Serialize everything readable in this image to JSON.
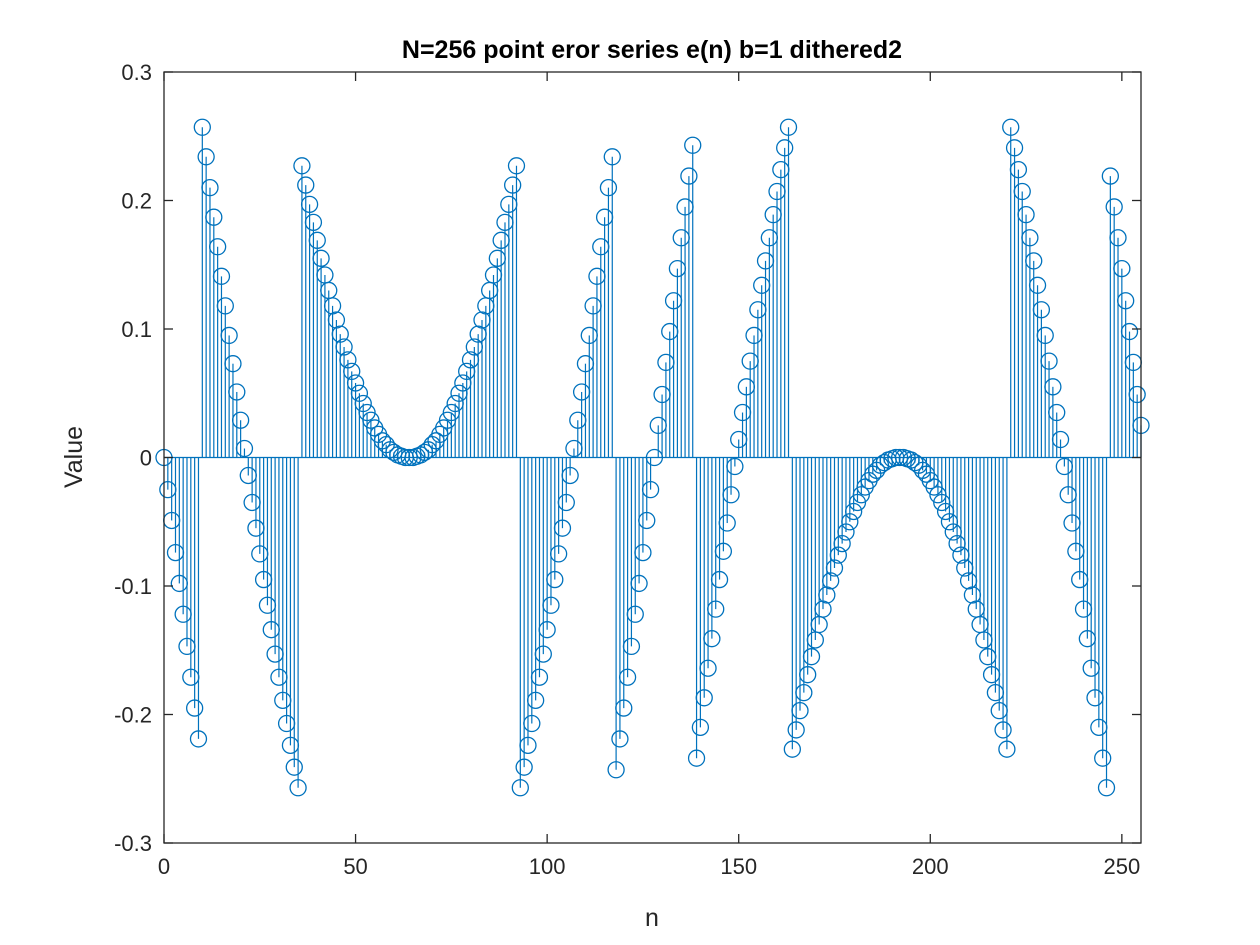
{
  "chart_data": {
    "type": "stem",
    "title": "N=256 point eror series e(n) b=1 dithered2",
    "xlabel": "n",
    "ylabel": "Value",
    "xlim": [
      0,
      255
    ],
    "ylim": [
      -0.3,
      0.3
    ],
    "x_ticks": [
      0,
      50,
      100,
      150,
      200,
      250
    ],
    "x_tick_labels": [
      "0",
      "50",
      "100",
      "150",
      "200",
      "250"
    ],
    "y_ticks": [
      -0.3,
      -0.2,
      -0.1,
      0,
      0.1,
      0.2,
      0.3
    ],
    "y_tick_labels": [
      "-0.3",
      "-0.2",
      "-0.1",
      "0",
      "0.1",
      "0.2",
      "0.3"
    ],
    "grid": false,
    "box": true,
    "marker": "circle",
    "series_color": "#0072BD",
    "x": [
      0,
      1,
      2,
      3,
      4,
      5,
      6,
      7,
      8,
      9,
      10,
      11,
      12,
      13,
      14,
      15,
      16,
      17,
      18,
      19,
      20,
      21,
      22,
      23,
      24,
      25,
      26,
      27,
      28,
      29,
      30,
      31,
      32,
      33,
      34,
      35,
      36,
      37,
      38,
      39,
      40,
      41,
      42,
      43,
      44,
      45,
      46,
      47,
      48,
      49,
      50,
      51,
      52,
      53,
      54,
      55,
      56,
      57,
      58,
      59,
      60,
      61,
      62,
      63,
      64,
      65,
      66,
      67,
      68,
      69,
      70,
      71,
      72,
      73,
      74,
      75,
      76,
      77,
      78,
      79,
      80,
      81,
      82,
      83,
      84,
      85,
      86,
      87,
      88,
      89,
      90,
      91,
      92,
      93,
      94,
      95,
      96,
      97,
      98,
      99,
      100,
      101,
      102,
      103,
      104,
      105,
      106,
      107,
      108,
      109,
      110,
      111,
      112,
      113,
      114,
      115,
      116,
      117,
      118,
      119,
      120,
      121,
      122,
      123,
      124,
      125,
      126,
      127,
      128,
      129,
      130,
      131,
      132,
      133,
      134,
      135,
      136,
      137,
      138,
      139,
      140,
      141,
      142,
      143,
      144,
      145,
      146,
      147,
      148,
      149,
      150,
      151,
      152,
      153,
      154,
      155,
      156,
      157,
      158,
      159,
      160,
      161,
      162,
      163,
      164,
      165,
      166,
      167,
      168,
      169,
      170,
      171,
      172,
      173,
      174,
      175,
      176,
      177,
      178,
      179,
      180,
      181,
      182,
      183,
      184,
      185,
      186,
      187,
      188,
      189,
      190,
      191,
      192,
      193,
      194,
      195,
      196,
      197,
      198,
      199,
      200,
      201,
      202,
      203,
      204,
      205,
      206,
      207,
      208,
      209,
      210,
      211,
      212,
      213,
      214,
      215,
      216,
      217,
      218,
      219,
      220,
      221,
      222,
      223,
      224,
      225,
      226,
      227,
      228,
      229,
      230,
      231,
      232,
      233,
      234,
      235,
      236,
      237,
      238,
      239,
      240,
      241,
      242,
      243,
      244,
      245,
      246,
      247,
      248,
      249,
      250,
      251,
      252,
      253,
      254,
      255
    ],
    "y": [
      0,
      -0.025,
      -0.049,
      -0.074,
      -0.098,
      -0.122,
      -0.147,
      -0.171,
      -0.195,
      -0.219,
      0.257,
      0.234,
      0.21,
      0.187,
      0.164,
      0.141,
      0.118,
      0.095,
      0.073,
      0.051,
      0.029,
      0.007,
      -0.014,
      -0.035,
      -0.055,
      -0.075,
      -0.095,
      -0.115,
      -0.134,
      -0.153,
      -0.171,
      -0.189,
      -0.207,
      -0.224,
      -0.241,
      -0.257,
      0.227,
      0.212,
      0.197,
      0.183,
      0.169,
      0.155,
      0.142,
      0.13,
      0.118,
      0.107,
      0.096,
      0.086,
      0.076,
      0.067,
      0.058,
      0.05,
      0.042,
      0.035,
      0.029,
      0.023,
      0.018,
      0.013,
      0.01,
      0.006,
      0.004,
      0.002,
      0.001,
      0,
      0,
      0,
      0.001,
      0.002,
      0.004,
      0.006,
      0.01,
      0.013,
      0.018,
      0.023,
      0.029,
      0.035,
      0.042,
      0.05,
      0.058,
      0.067,
      0.076,
      0.086,
      0.096,
      0.107,
      0.118,
      0.13,
      0.142,
      0.155,
      0.169,
      0.183,
      0.197,
      0.212,
      0.227,
      -0.257,
      -0.241,
      -0.224,
      -0.207,
      -0.189,
      -0.171,
      -0.153,
      -0.134,
      -0.115,
      -0.095,
      -0.075,
      -0.055,
      -0.035,
      -0.014,
      0.007,
      0.029,
      0.051,
      0.073,
      0.095,
      0.118,
      0.141,
      0.164,
      0.187,
      0.21,
      0.234,
      -0.243,
      -0.219,
      -0.195,
      -0.171,
      -0.147,
      -0.122,
      -0.098,
      -0.074,
      -0.049,
      -0.025,
      0,
      0.025,
      0.049,
      0.074,
      0.098,
      0.122,
      0.147,
      0.171,
      0.195,
      0.219,
      0.243,
      -0.234,
      -0.21,
      -0.187,
      -0.164,
      -0.141,
      -0.118,
      -0.095,
      -0.073,
      -0.051,
      -0.029,
      -0.007,
      0.014,
      0.035,
      0.055,
      0.075,
      0.095,
      0.115,
      0.134,
      0.153,
      0.171,
      0.189,
      0.207,
      0.224,
      0.241,
      0.257,
      -0.227,
      -0.212,
      -0.197,
      -0.183,
      -0.169,
      -0.155,
      -0.142,
      -0.13,
      -0.118,
      -0.107,
      -0.096,
      -0.086,
      -0.076,
      -0.067,
      -0.058,
      -0.05,
      -0.042,
      -0.035,
      -0.029,
      -0.023,
      -0.018,
      -0.013,
      -0.01,
      -0.006,
      -0.004,
      -0.002,
      -0.001,
      0,
      0,
      0,
      -0.001,
      -0.002,
      -0.004,
      -0.006,
      -0.01,
      -0.013,
      -0.018,
      -0.023,
      -0.029,
      -0.035,
      -0.042,
      -0.05,
      -0.058,
      -0.067,
      -0.076,
      -0.086,
      -0.096,
      -0.107,
      -0.118,
      -0.13,
      -0.142,
      -0.155,
      -0.169,
      -0.183,
      -0.197,
      -0.212,
      -0.227,
      0.257,
      0.241,
      0.224,
      0.207,
      0.189,
      0.171,
      0.153,
      0.134,
      0.115,
      0.095,
      0.075,
      0.055,
      0.035,
      0.014,
      -0.007,
      -0.029,
      -0.051,
      -0.073,
      -0.095,
      -0.118,
      -0.141,
      -0.164,
      -0.187,
      -0.21,
      -0.234,
      -0.257,
      0.219,
      0.195,
      0.171,
      0.147,
      0.122,
      0.098,
      0.074,
      0.049,
      0.025
    ]
  }
}
